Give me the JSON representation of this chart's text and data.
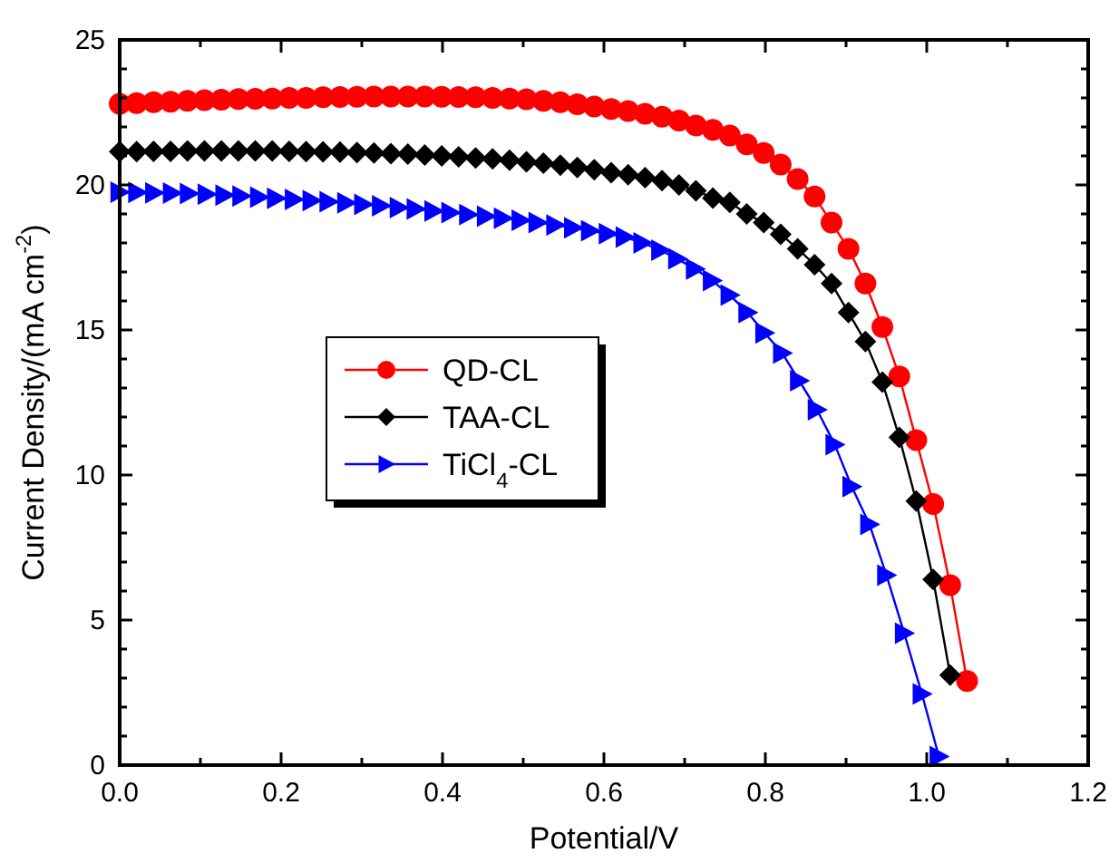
{
  "chart_data": {
    "type": "line",
    "xlabel": "Potential/V",
    "ylabel": "Current Density/(mA cm$^{-2}$)",
    "xlim": [
      0,
      1.2
    ],
    "ylim": [
      0,
      25
    ],
    "xticks": [
      {
        "value": 0,
        "label": "0.0"
      },
      {
        "value": 0.1,
        "label": null
      },
      {
        "value": 0.2,
        "label": "0.2"
      },
      {
        "value": 0.3,
        "label": null
      },
      {
        "value": 0.4,
        "label": "0.4"
      },
      {
        "value": 0.5,
        "label": null
      },
      {
        "value": 0.6,
        "label": "0.6"
      },
      {
        "value": 0.7,
        "label": null
      },
      {
        "value": 0.8,
        "label": "0.8"
      },
      {
        "value": 0.9,
        "label": null
      },
      {
        "value": 1.0,
        "label": "1.0"
      },
      {
        "value": 1.1,
        "label": null
      },
      {
        "value": 1.2,
        "label": "1.2"
      }
    ],
    "yticks": [
      0,
      {
        "value": 1,
        "label": null
      },
      {
        "value": 2,
        "label": null
      },
      {
        "value": 3,
        "label": null
      },
      {
        "value": 4,
        "label": null
      },
      5,
      {
        "value": 6,
        "label": null
      },
      {
        "value": 7,
        "label": null
      },
      {
        "value": 8,
        "label": null
      },
      {
        "value": 9,
        "label": null
      },
      10,
      {
        "value": 11,
        "label": null
      },
      {
        "value": 12,
        "label": null
      },
      {
        "value": 13,
        "label": null
      },
      {
        "value": 14,
        "label": null
      },
      15,
      {
        "value": 16,
        "label": null
      },
      {
        "value": 17,
        "label": null
      },
      {
        "value": 18,
        "label": null
      },
      {
        "value": 19,
        "label": null
      },
      20,
      {
        "value": 21,
        "label": null
      },
      {
        "value": 22,
        "label": null
      },
      {
        "value": 23,
        "label": null
      },
      {
        "value": 24,
        "label": null
      },
      25
    ],
    "grid": false,
    "legend": "center",
    "line_style": "solid",
    "series": [
      {
        "name": "QD-CL",
        "color": "#ff0000",
        "marker": "circle",
        "x": [
          0,
          0.021,
          0.042,
          0.063,
          0.084,
          0.105,
          0.126,
          0.147,
          0.168,
          0.189,
          0.21,
          0.231,
          0.252,
          0.273,
          0.294,
          0.315,
          0.336,
          0.357,
          0.378,
          0.399,
          0.42,
          0.441,
          0.462,
          0.483,
          0.504,
          0.525,
          0.546,
          0.567,
          0.588,
          0.609,
          0.63,
          0.651,
          0.672,
          0.693,
          0.714,
          0.735,
          0.756,
          0.777,
          0.798,
          0.819,
          0.84,
          0.861,
          0.882,
          0.903,
          0.924,
          0.945,
          0.966,
          0.987,
          1.008,
          1.029,
          1.05
        ],
        "values": [
          22.8,
          22.82,
          22.85,
          22.87,
          22.9,
          22.92,
          22.94,
          22.96,
          22.97,
          22.98,
          23.0,
          23.0,
          23.02,
          23.03,
          23.04,
          23.05,
          23.05,
          23.05,
          23.05,
          23.04,
          23.03,
          23.02,
          23.0,
          22.98,
          22.95,
          22.9,
          22.85,
          22.78,
          22.7,
          22.62,
          22.55,
          22.45,
          22.35,
          22.22,
          22.05,
          21.9,
          21.7,
          21.4,
          21.1,
          20.7,
          20.2,
          19.6,
          18.7,
          17.8,
          16.6,
          15.1,
          13.4,
          11.2,
          9.0,
          6.2,
          2.9
        ]
      },
      {
        "name": "TAA-CL",
        "color": "#000000",
        "marker": "diamond",
        "x": [
          0,
          0.021,
          0.042,
          0.063,
          0.084,
          0.105,
          0.126,
          0.147,
          0.168,
          0.189,
          0.21,
          0.231,
          0.252,
          0.273,
          0.294,
          0.315,
          0.336,
          0.357,
          0.378,
          0.399,
          0.42,
          0.441,
          0.462,
          0.483,
          0.504,
          0.525,
          0.546,
          0.567,
          0.588,
          0.609,
          0.63,
          0.651,
          0.672,
          0.693,
          0.714,
          0.735,
          0.756,
          0.777,
          0.798,
          0.819,
          0.84,
          0.861,
          0.882,
          0.903,
          0.924,
          0.945,
          0.966,
          0.987,
          1.008,
          1.029
        ],
        "values": [
          21.15,
          21.15,
          21.16,
          21.16,
          21.17,
          21.17,
          21.17,
          21.17,
          21.17,
          21.17,
          21.16,
          21.15,
          21.14,
          21.13,
          21.12,
          21.1,
          21.08,
          21.06,
          21.03,
          21.0,
          20.97,
          20.93,
          20.9,
          20.85,
          20.8,
          20.75,
          20.68,
          20.6,
          20.52,
          20.42,
          20.35,
          20.25,
          20.15,
          20.0,
          19.8,
          19.55,
          19.4,
          19.0,
          18.7,
          18.3,
          17.8,
          17.25,
          16.6,
          15.6,
          14.6,
          13.2,
          11.3,
          9.1,
          6.4,
          3.1
        ]
      },
      {
        "name": "TiCl$_{4}$-CL",
        "color": "#0000ff",
        "marker": "triangle",
        "x": [
          0,
          0.022,
          0.043,
          0.065,
          0.086,
          0.108,
          0.13,
          0.151,
          0.173,
          0.194,
          0.216,
          0.238,
          0.259,
          0.281,
          0.302,
          0.324,
          0.346,
          0.367,
          0.389,
          0.41,
          0.432,
          0.454,
          0.475,
          0.497,
          0.518,
          0.54,
          0.562,
          0.583,
          0.605,
          0.626,
          0.648,
          0.67,
          0.691,
          0.713,
          0.734,
          0.756,
          0.778,
          0.799,
          0.821,
          0.842,
          0.864,
          0.886,
          0.907,
          0.929,
          0.95,
          0.972,
          0.994,
          1.015
        ],
        "values": [
          19.75,
          19.74,
          19.73,
          19.72,
          19.7,
          19.68,
          19.65,
          19.62,
          19.58,
          19.54,
          19.5,
          19.46,
          19.42,
          19.38,
          19.33,
          19.28,
          19.22,
          19.17,
          19.1,
          19.05,
          18.98,
          18.92,
          18.85,
          18.78,
          18.7,
          18.62,
          18.52,
          18.42,
          18.32,
          18.2,
          18.0,
          17.75,
          17.45,
          17.1,
          16.7,
          16.2,
          15.6,
          14.9,
          14.2,
          13.25,
          12.25,
          11.05,
          9.6,
          8.3,
          6.55,
          4.55,
          2.45,
          0.3
        ]
      }
    ]
  }
}
